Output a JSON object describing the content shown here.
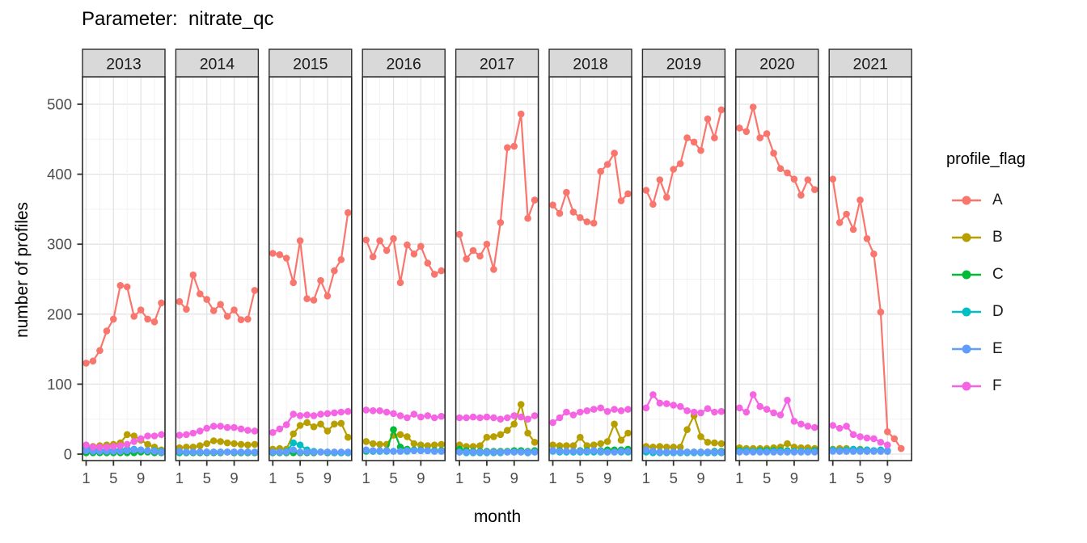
{
  "title": "Parameter:  nitrate_qc",
  "y_axis": {
    "title": "number of profiles",
    "ticks": [
      0,
      100,
      200,
      300,
      400,
      500
    ]
  },
  "x_axis": {
    "title": "month",
    "ticks": [
      1,
      5,
      9
    ]
  },
  "legend": {
    "title": "profile_flag",
    "entries": [
      {
        "label": "A",
        "color": "#F8766D"
      },
      {
        "label": "B",
        "color": "#B79F00"
      },
      {
        "label": "C",
        "color": "#00BA38"
      },
      {
        "label": "D",
        "color": "#00BFC4"
      },
      {
        "label": "E",
        "color": "#619CFF"
      },
      {
        "label": "F",
        "color": "#F564E3"
      }
    ]
  },
  "chart_data": {
    "type": "line",
    "title": "Parameter:  nitrate_qc",
    "xlabel": "month",
    "ylabel": "number of profiles",
    "ylim": [
      0,
      500
    ],
    "x_breaks": [
      1,
      5,
      9
    ],
    "grid": "on",
    "legend_position": "right",
    "legend_title": "profile_flag",
    "facet_variable": "year",
    "series_colors": {
      "A": "#F8766D",
      "B": "#B79F00",
      "C": "#00BA38",
      "D": "#00BFC4",
      "E": "#619CFF",
      "F": "#F564E3"
    },
    "facets": [
      {
        "year": "2013",
        "series": {
          "A": [
            130,
            133,
            148,
            176,
            193,
            241,
            239,
            197,
            206,
            193,
            189,
            216
          ],
          "B": [
            8,
            11,
            12,
            13,
            14,
            16,
            28,
            26,
            20,
            14,
            10,
            6
          ],
          "C": [
            2,
            2,
            2,
            2,
            2,
            2,
            2,
            2,
            3,
            3,
            2,
            2
          ],
          "D": [
            8,
            7,
            6,
            6,
            6,
            6,
            7,
            7,
            6,
            5,
            5,
            4
          ],
          "E": [
            5,
            4,
            4,
            4,
            4,
            4,
            5,
            6,
            6,
            5,
            4,
            3
          ],
          "F": [
            13,
            10,
            10,
            10,
            11,
            12,
            14,
            18,
            22,
            26,
            26,
            28
          ]
        }
      },
      {
        "year": "2014",
        "series": {
          "A": [
            218,
            207,
            256,
            229,
            221,
            205,
            214,
            197,
            206,
            192,
            193,
            234
          ],
          "B": [
            9,
            10,
            10,
            12,
            15,
            19,
            18,
            16,
            15,
            14,
            13,
            14
          ],
          "C": [
            2,
            2,
            2,
            2,
            2,
            2,
            2,
            3,
            2,
            2,
            2,
            2
          ],
          "D": [
            3,
            3,
            3,
            3,
            3,
            3,
            3,
            3,
            3,
            3,
            3,
            3
          ],
          "E": [
            4,
            3,
            3,
            3,
            3,
            3,
            3,
            3,
            3,
            3,
            3,
            3
          ],
          "F": [
            27,
            28,
            30,
            33,
            37,
            40,
            40,
            38,
            38,
            36,
            34,
            33
          ]
        }
      },
      {
        "year": "2015",
        "series": {
          "A": [
            287,
            285,
            280,
            245,
            305,
            222,
            220,
            248,
            226,
            262,
            278,
            345
          ],
          "B": [
            7,
            8,
            7,
            29,
            41,
            45,
            39,
            43,
            33,
            43,
            44,
            24
          ],
          "C": [
            2,
            2,
            2,
            2,
            2,
            2,
            2,
            3,
            2,
            2,
            2,
            2
          ],
          "D": [
            3,
            3,
            4,
            16,
            13,
            6,
            4,
            3,
            3,
            2,
            2,
            2
          ],
          "E": [
            3,
            3,
            3,
            6,
            3,
            3,
            3,
            3,
            3,
            3,
            3,
            3
          ],
          "F": [
            31,
            36,
            42,
            57,
            55,
            56,
            55,
            57,
            58,
            59,
            60,
            61
          ]
        }
      },
      {
        "year": "2016",
        "series": {
          "A": [
            306,
            282,
            305,
            291,
            308,
            245,
            299,
            286,
            297,
            273,
            257,
            262
          ],
          "B": [
            18,
            15,
            14,
            14,
            27,
            28,
            25,
            15,
            13,
            12,
            13,
            14
          ],
          "C": [
            4,
            4,
            4,
            5,
            35,
            10,
            7,
            6,
            6,
            5,
            5,
            5
          ],
          "D": [
            5,
            4,
            4,
            4,
            4,
            4,
            4,
            5,
            5,
            5,
            4,
            4
          ],
          "E": [
            6,
            5,
            5,
            5,
            4,
            4,
            5,
            5,
            5,
            5,
            4,
            4
          ],
          "F": [
            63,
            62,
            62,
            60,
            58,
            55,
            52,
            57,
            53,
            55,
            52,
            54
          ]
        }
      },
      {
        "year": "2017",
        "series": {
          "A": [
            314,
            279,
            291,
            283,
            300,
            264,
            331,
            438,
            440,
            486,
            337,
            363
          ],
          "B": [
            13,
            11,
            11,
            12,
            24,
            25,
            28,
            34,
            43,
            71,
            30,
            17
          ],
          "C": [
            7,
            5,
            4,
            4,
            4,
            4,
            4,
            4,
            5,
            5,
            4,
            5
          ],
          "D": [
            3,
            2,
            2,
            2,
            2,
            2,
            2,
            3,
            3,
            3,
            2,
            3
          ],
          "E": [
            3,
            3,
            3,
            3,
            3,
            3,
            3,
            3,
            3,
            3,
            3,
            3
          ],
          "F": [
            52,
            52,
            53,
            52,
            53,
            52,
            50,
            52,
            55,
            53,
            50,
            55
          ]
        }
      },
      {
        "year": "2018",
        "series": {
          "A": [
            356,
            344,
            374,
            346,
            338,
            332,
            330,
            404,
            414,
            430,
            362,
            372
          ],
          "B": [
            13,
            12,
            12,
            12,
            24,
            12,
            13,
            15,
            18,
            43,
            20,
            30
          ],
          "C": [
            5,
            5,
            4,
            4,
            5,
            5,
            4,
            5,
            6,
            6,
            6,
            7
          ],
          "D": [
            4,
            3,
            3,
            3,
            3,
            3,
            3,
            3,
            3,
            3,
            3,
            3
          ],
          "E": [
            5,
            4,
            4,
            4,
            4,
            4,
            5,
            4,
            3,
            3,
            4,
            4
          ],
          "F": [
            45,
            52,
            60,
            56,
            60,
            62,
            64,
            66,
            61,
            64,
            62,
            64
          ]
        }
      },
      {
        "year": "2019",
        "series": {
          "A": [
            377,
            357,
            392,
            367,
            407,
            415,
            452,
            446,
            434,
            479,
            452,
            492
          ],
          "B": [
            11,
            10,
            11,
            10,
            10,
            10,
            35,
            55,
            25,
            17,
            16,
            15
          ],
          "C": [
            4,
            3,
            3,
            3,
            3,
            3,
            3,
            3,
            3,
            3,
            4,
            4
          ],
          "D": [
            3,
            2,
            2,
            2,
            2,
            2,
            2,
            2,
            2,
            2,
            2,
            2
          ],
          "E": [
            6,
            4,
            3,
            3,
            3,
            3,
            3,
            3,
            3,
            3,
            3,
            3
          ],
          "F": [
            66,
            85,
            73,
            72,
            70,
            68,
            62,
            60,
            59,
            65,
            60,
            61
          ]
        }
      },
      {
        "year": "2020",
        "series": {
          "A": [
            466,
            461,
            496,
            452,
            458,
            430,
            408,
            402,
            393,
            370,
            392,
            378
          ],
          "B": [
            9,
            8,
            8,
            8,
            8,
            9,
            10,
            15,
            10,
            9,
            9,
            8
          ],
          "C": [
            5,
            4,
            4,
            5,
            5,
            5,
            5,
            5,
            4,
            4,
            4,
            5
          ],
          "D": [
            4,
            5,
            4,
            4,
            4,
            4,
            4,
            4,
            4,
            4,
            4,
            4
          ],
          "E": [
            3,
            3,
            3,
            3,
            3,
            3,
            3,
            3,
            3,
            3,
            3,
            3
          ],
          "F": [
            66,
            60,
            85,
            68,
            64,
            59,
            56,
            77,
            47,
            43,
            40,
            38
          ]
        }
      },
      {
        "year": "2021",
        "series": {
          "A": [
            393,
            331,
            343,
            321,
            363,
            308,
            286,
            203,
            32,
            22,
            8
          ],
          "B": [
            7,
            8,
            8,
            6,
            7,
            6,
            5,
            5,
            4
          ],
          "C": [
            5,
            4,
            4,
            4,
            4,
            4,
            4,
            4,
            4
          ],
          "D": [
            6,
            5,
            6,
            7,
            6,
            6,
            5,
            6,
            5
          ],
          "E": [
            4,
            4,
            4,
            4,
            4,
            4,
            4,
            4,
            4
          ],
          "F": [
            41,
            37,
            40,
            28,
            25,
            23,
            22,
            17,
            13
          ]
        }
      }
    ]
  }
}
